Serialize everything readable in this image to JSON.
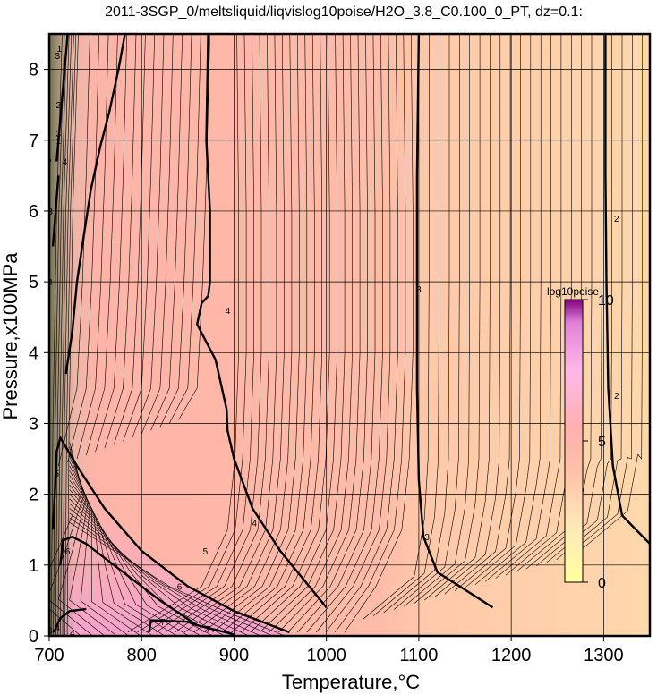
{
  "chart_data": {
    "type": "heatmap",
    "title": "2011-3SGP_0/meltsliquid/liqvislog10poise/H2O_3.8_C0.100_0_PT, dz=0.1:",
    "xlabel": "Temperature,°C",
    "ylabel": "Pressure,x100MPa",
    "xlim": [
      700,
      1350
    ],
    "ylim": [
      0,
      8.5
    ],
    "x_ticks": [
      700,
      800,
      900,
      1000,
      1100,
      1200,
      1300
    ],
    "y_ticks": [
      0,
      1,
      2,
      3,
      4,
      5,
      6,
      7,
      8
    ],
    "grid": true,
    "z_variable": "log10poise",
    "colorbar": {
      "title": "log10poise",
      "range": [
        0,
        10
      ],
      "tick_labels": [
        "0",
        "5",
        "10"
      ],
      "tick_values": [
        0,
        5,
        10
      ],
      "colors": {
        "low": "#ffffa0",
        "mid_low": "#ffe0c0",
        "mid": "#ffb0a0",
        "mid_high": "#ff90c8",
        "high": "#700070"
      }
    },
    "major_contours": [
      {
        "level": 2,
        "label": "2",
        "points": [
          [
            1350,
            1.3
          ],
          [
            1320,
            1.7
          ],
          [
            1310,
            2.4
          ],
          [
            1305,
            3.5
          ],
          [
            1303,
            5.0
          ],
          [
            1302,
            6.5
          ],
          [
            1302,
            8.5
          ]
        ]
      },
      {
        "level": 3,
        "label": "3",
        "points": [
          [
            1180,
            0.4
          ],
          [
            1120,
            0.9
          ],
          [
            1105,
            1.4
          ],
          [
            1100,
            2.2
          ],
          [
            1098,
            3.5
          ],
          [
            1098,
            5.0
          ],
          [
            1098,
            6.5
          ],
          [
            1100,
            8.5
          ]
        ]
      },
      {
        "level": 4,
        "label": "4",
        "points": [
          [
            1000,
            0.4
          ],
          [
            950,
            1.2
          ],
          [
            920,
            1.8
          ],
          [
            900,
            2.5
          ],
          [
            893,
            2.9
          ],
          [
            892,
            3.2
          ],
          [
            880,
            3.9
          ],
          [
            860,
            4.4
          ],
          [
            865,
            4.7
          ],
          [
            872,
            4.8
          ],
          [
            874,
            5.0
          ],
          [
            874,
            6.0
          ],
          [
            870,
            7.0
          ],
          [
            872,
            8.5
          ]
        ]
      },
      {
        "level": 4,
        "label": "4",
        "points": [
          [
            718,
            3.7
          ],
          [
            725,
            4.3
          ],
          [
            730,
            5.0
          ],
          [
            738,
            5.7
          ],
          [
            745,
            6.3
          ],
          [
            755,
            6.9
          ],
          [
            765,
            7.4
          ],
          [
            775,
            8.0
          ],
          [
            782,
            8.5
          ]
        ]
      },
      {
        "level": 5,
        "label": "5",
        "points": [
          [
            960,
            0.05
          ],
          [
            900,
            0.35
          ],
          [
            850,
            0.7
          ],
          [
            800,
            1.2
          ],
          [
            760,
            1.8
          ],
          [
            730,
            2.4
          ],
          [
            712,
            2.8
          ],
          [
            708,
            2.6
          ],
          [
            706,
            2.0
          ],
          [
            704,
            1.5
          ]
        ]
      },
      {
        "level": 6,
        "label": "6",
        "points": [
          [
            900,
            0.02
          ],
          [
            860,
            0.15
          ],
          [
            820,
            0.5
          ],
          [
            790,
            0.8
          ],
          [
            760,
            1.1
          ],
          [
            740,
            1.3
          ],
          [
            725,
            1.4
          ],
          [
            715,
            1.35
          ],
          [
            712,
            1.0
          ]
        ]
      },
      {
        "level": 7,
        "label": "7",
        "points": [
          [
            860,
            0.15
          ],
          [
            850,
            0.2
          ],
          [
            810,
            0.22
          ],
          [
            808,
            0.05
          ]
        ]
      },
      {
        "level": 2,
        "label": "2",
        "points": [
          [
            708,
            6.7
          ],
          [
            712,
            7.3
          ],
          [
            716,
            7.9
          ],
          [
            720,
            8.5
          ]
        ]
      },
      {
        "level": 3,
        "label": "3",
        "points": [
          [
            704,
            5.5
          ],
          [
            707,
            6.0
          ],
          [
            710,
            6.5
          ]
        ]
      },
      {
        "level": 4,
        "label": "4",
        "points": [
          [
            705,
            0.05
          ],
          [
            712,
            0.25
          ],
          [
            722,
            0.35
          ],
          [
            740,
            0.38
          ]
        ]
      }
    ],
    "contour_labels": [
      {
        "text": "2",
        "x": 1314,
        "y": 5.9
      },
      {
        "text": "2",
        "x": 1314,
        "y": 3.4
      },
      {
        "text": "3",
        "x": 1100,
        "y": 4.9
      },
      {
        "text": "3",
        "x": 1109,
        "y": 1.4
      },
      {
        "text": "4",
        "x": 893,
        "y": 4.6
      },
      {
        "text": "4",
        "x": 922,
        "y": 1.6
      },
      {
        "text": "4",
        "x": 717,
        "y": 6.7
      },
      {
        "text": "4",
        "x": 701,
        "y": 5.0
      },
      {
        "text": "5",
        "x": 869,
        "y": 1.2
      },
      {
        "text": "5",
        "x": 708,
        "y": 2.3
      },
      {
        "text": "6",
        "x": 841,
        "y": 0.7
      },
      {
        "text": "6",
        "x": 720,
        "y": 1.2
      },
      {
        "text": "7",
        "x": 872,
        "y": 0.1
      },
      {
        "text": "7",
        "x": 823,
        "y": 0.2
      },
      {
        "text": "2",
        "x": 710,
        "y": 7.5
      },
      {
        "text": "3",
        "x": 710,
        "y": 7.1
      },
      {
        "text": "1",
        "x": 710,
        "y": 7.0
      },
      {
        "text": "3",
        "x": 701,
        "y": 6.0
      },
      {
        "text": "2",
        "x": 700,
        "y": 6.7
      },
      {
        "text": "3",
        "x": 709,
        "y": 8.2
      },
      {
        "text": "1",
        "x": 711,
        "y": 8.3
      },
      {
        "text": "4",
        "x": 709,
        "y": 0.12
      },
      {
        "text": "4",
        "x": 725,
        "y": 0.05
      },
      {
        "text": "3",
        "x": 701,
        "y": 0.08
      }
    ]
  }
}
